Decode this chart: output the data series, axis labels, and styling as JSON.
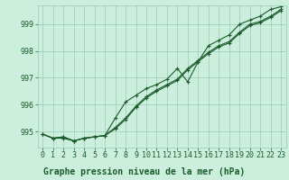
{
  "background_color": "#cceedd",
  "plot_bg_color": "#cceedd",
  "grid_color": "#99ccbb",
  "line_color": "#1a5c2a",
  "xlim": [
    -0.5,
    23.5
  ],
  "ylim": [
    994.4,
    999.7
  ],
  "yticks": [
    995,
    996,
    997,
    998,
    999
  ],
  "xticks": [
    0,
    1,
    2,
    3,
    4,
    5,
    6,
    7,
    8,
    9,
    10,
    11,
    12,
    13,
    14,
    15,
    16,
    17,
    18,
    19,
    20,
    21,
    22,
    23
  ],
  "xlabel": "Graphe pression niveau de la mer (hPa)",
  "series1": [
    994.9,
    994.75,
    994.75,
    994.65,
    994.75,
    994.8,
    994.85,
    995.1,
    995.45,
    995.9,
    996.25,
    996.5,
    996.7,
    996.9,
    997.3,
    997.6,
    997.9,
    998.15,
    998.3,
    998.65,
    998.95,
    999.05,
    999.25,
    999.5
  ],
  "series2": [
    994.9,
    994.75,
    994.8,
    994.65,
    994.75,
    994.8,
    994.85,
    995.15,
    995.5,
    995.95,
    996.3,
    996.55,
    996.75,
    996.95,
    997.35,
    997.65,
    997.95,
    998.2,
    998.35,
    998.7,
    999.0,
    999.1,
    999.3,
    999.55
  ],
  "series3": [
    994.9,
    994.75,
    994.8,
    994.65,
    994.75,
    994.8,
    994.85,
    995.5,
    996.1,
    996.35,
    996.6,
    996.75,
    996.95,
    997.35,
    996.85,
    997.6,
    998.2,
    998.4,
    998.6,
    999.0,
    999.15,
    999.3,
    999.55,
    999.65
  ],
  "tick_fontsize": 6,
  "xlabel_fontsize": 7
}
